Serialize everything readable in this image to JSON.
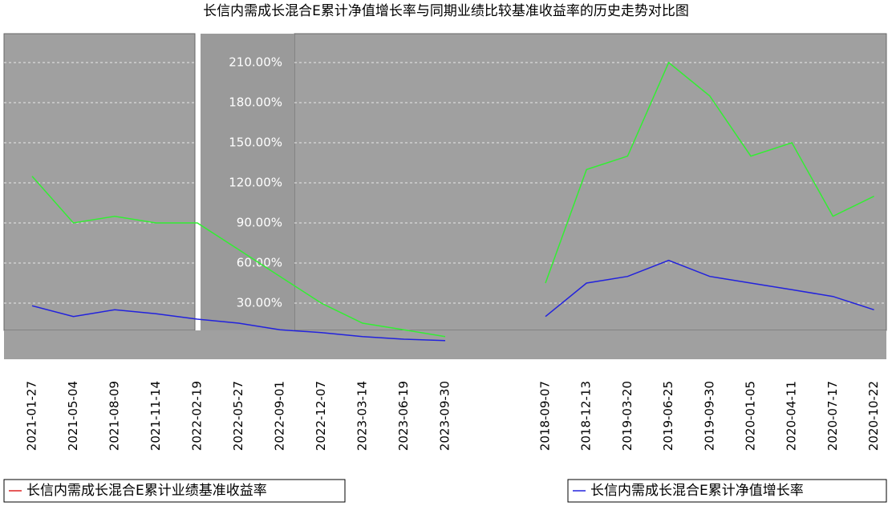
{
  "chart_data": {
    "type": "line",
    "title": "长信内需成长混合E累计净值增长率与同期业绩比较基准收益率的历史走势对比图",
    "categories": [
      "2018-09-07",
      "2018-12-13",
      "2019-03-20",
      "2019-06-25",
      "2019-09-30",
      "2020-01-05",
      "2020-04-11",
      "2020-07-17",
      "2020-10-22",
      "2021-01-27",
      "2021-05-04",
      "2021-08-09",
      "2021-11-14",
      "2022-02-19",
      "2022-05-27",
      "2022-09-01",
      "2022-12-07",
      "2023-03-14",
      "2023-06-19",
      "2023-09-30"
    ],
    "series": [
      {
        "name": "长信内需成长混合E累计净值增长率",
        "color": "#33ee33",
        "legend_color": "#2222dd",
        "values": [
          45,
          130,
          140,
          210,
          185,
          140,
          150,
          95,
          110,
          125,
          90,
          95,
          90,
          90,
          70,
          50,
          30,
          15,
          10,
          5
        ]
      },
      {
        "name": "长信内需成长混合E累计业绩基准收益率",
        "color": "#2222dd",
        "legend_color": "#dd2222",
        "values": [
          20,
          45,
          50,
          62,
          50,
          45,
          40,
          35,
          25,
          28,
          20,
          25,
          22,
          18,
          15,
          10,
          8,
          5,
          3,
          2
        ]
      }
    ],
    "ylim": [
      0,
      230
    ],
    "yticks": [
      {
        "value": 30,
        "label": "30.00%"
      },
      {
        "value": 60,
        "label": "60.00%"
      },
      {
        "value": 90,
        "label": "90.00%"
      },
      {
        "value": 120,
        "label": "120.00%"
      },
      {
        "value": 150,
        "label": "150.00%"
      },
      {
        "value": 180,
        "label": "180.00%"
      },
      {
        "value": 210,
        "label": "210.00%"
      }
    ],
    "grid": true
  }
}
